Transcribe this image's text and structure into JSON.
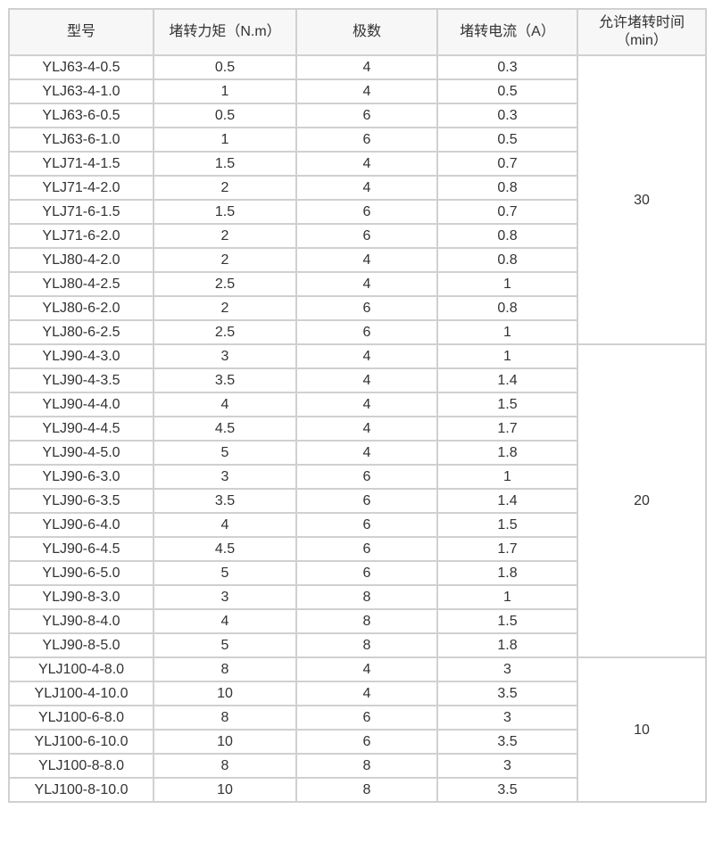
{
  "headers": [
    "型号",
    "堵转力矩（N.m）",
    "极数",
    "堵转电流（A）",
    "允许堵转时间（min）"
  ],
  "rows": [
    [
      "YLJ63-4-0.5",
      "0.5",
      "4",
      "0.3"
    ],
    [
      "YLJ63-4-1.0",
      "1",
      "4",
      "0.5"
    ],
    [
      "YLJ63-6-0.5",
      "0.5",
      "6",
      "0.3"
    ],
    [
      "YLJ63-6-1.0",
      "1",
      "6",
      "0.5"
    ],
    [
      "YLJ71-4-1.5",
      "1.5",
      "4",
      "0.7"
    ],
    [
      "YLJ71-4-2.0",
      "2",
      "4",
      "0.8"
    ],
    [
      "YLJ71-6-1.5",
      "1.5",
      "6",
      "0.7"
    ],
    [
      "YLJ71-6-2.0",
      "2",
      "6",
      "0.8"
    ],
    [
      "YLJ80-4-2.0",
      "2",
      "4",
      "0.8"
    ],
    [
      "YLJ80-4-2.5",
      "2.5",
      "4",
      "1"
    ],
    [
      "YLJ80-6-2.0",
      "2",
      "6",
      "0.8"
    ],
    [
      "YLJ80-6-2.5",
      "2.5",
      "6",
      "1"
    ],
    [
      "YLJ90-4-3.0",
      "3",
      "4",
      "1"
    ],
    [
      "YLJ90-4-3.5",
      "3.5",
      "4",
      "1.4"
    ],
    [
      "YLJ90-4-4.0",
      "4",
      "4",
      "1.5"
    ],
    [
      "YLJ90-4-4.5",
      "4.5",
      "4",
      "1.7"
    ],
    [
      "YLJ90-4-5.0",
      "5",
      "4",
      "1.8"
    ],
    [
      "YLJ90-6-3.0",
      "3",
      "6",
      "1"
    ],
    [
      "YLJ90-6-3.5",
      "3.5",
      "6",
      "1.4"
    ],
    [
      "YLJ90-6-4.0",
      "4",
      "6",
      "1.5"
    ],
    [
      "YLJ90-6-4.5",
      "4.5",
      "6",
      "1.7"
    ],
    [
      "YLJ90-6-5.0",
      "5",
      "6",
      "1.8"
    ],
    [
      "YLJ90-8-3.0",
      "3",
      "8",
      "1"
    ],
    [
      "YLJ90-8-4.0",
      "4",
      "8",
      "1.5"
    ],
    [
      "YLJ90-8-5.0",
      "5",
      "8",
      "1.8"
    ],
    [
      "YLJ100-4-8.0",
      "8",
      "4",
      "3"
    ],
    [
      "YLJ100-4-10.0",
      "10",
      "4",
      "3.5"
    ],
    [
      "YLJ100-6-8.0",
      "8",
      "6",
      "3"
    ],
    [
      "YLJ100-6-10.0",
      "10",
      "6",
      "3.5"
    ],
    [
      "YLJ100-8-8.0",
      "8",
      "8",
      "3"
    ],
    [
      "YLJ100-8-10.0",
      "10",
      "8",
      "3.5"
    ]
  ],
  "time_groups": [
    {
      "value": "30",
      "span": 12
    },
    {
      "value": "20",
      "span": 13
    },
    {
      "value": "10",
      "span": 6
    }
  ]
}
